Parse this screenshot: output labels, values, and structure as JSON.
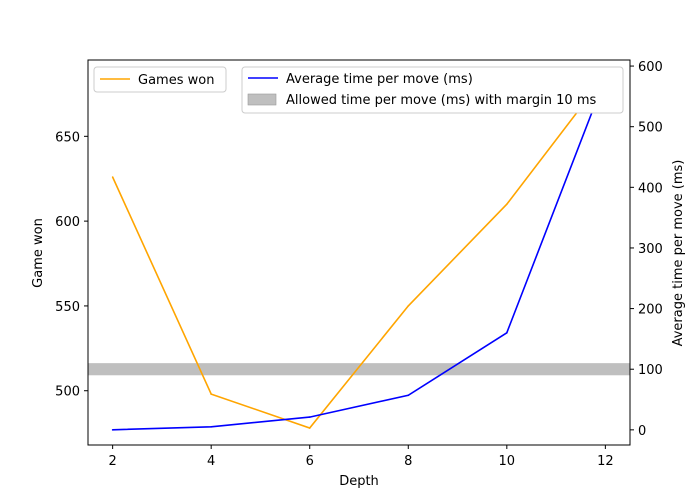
{
  "chart_data": {
    "type": "line",
    "x": [
      2,
      4,
      6,
      8,
      10,
      12
    ],
    "xlabel": "Depth",
    "xlim": [
      1.5,
      12.5
    ],
    "xticks": [
      2,
      4,
      6,
      8,
      10,
      12
    ],
    "grid": false,
    "left_axis": {
      "label": "Game won",
      "ylim": [
        468,
        695
      ],
      "ticks": [
        500,
        550,
        600,
        650
      ],
      "legend_position": "top-left",
      "series": [
        {
          "name": "Games won",
          "color": "#FFA500",
          "values": [
            626,
            498,
            478,
            550,
            610,
            686
          ]
        }
      ]
    },
    "right_axis": {
      "label": "Average time per move (ms)",
      "ylim": [
        -25,
        610
      ],
      "ticks": [
        0,
        100,
        200,
        300,
        400,
        500,
        600
      ],
      "legend_position": "top-right",
      "series": [
        {
          "name": "Average time per move (ms)",
          "color": "#0000FF",
          "values": [
            0,
            5,
            21,
            57,
            160,
            581
          ]
        }
      ],
      "band": {
        "name": "Allowed time per move (ms) with margin 10 ms",
        "color": "#BFBFBF",
        "y_range": [
          90,
          110
        ]
      }
    }
  }
}
